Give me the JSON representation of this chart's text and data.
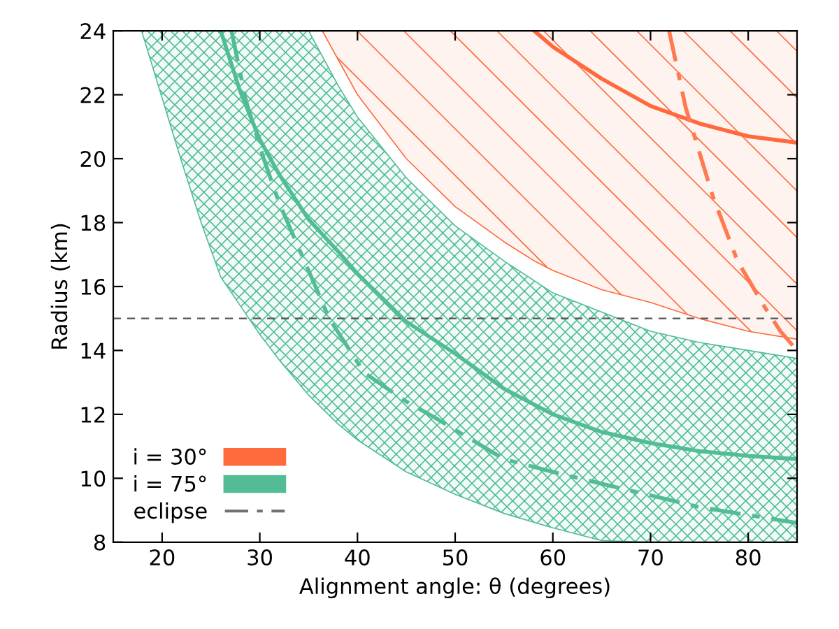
{
  "chart_data": {
    "type": "line",
    "xlabel": "Alignment angle: θ (degrees)",
    "ylabel": "Radius (km)",
    "xlim": [
      15,
      85
    ],
    "xticks": [
      20,
      30,
      40,
      50,
      60,
      70,
      80
    ],
    "ylim": [
      8,
      24
    ],
    "yticks": [
      8,
      10,
      12,
      14,
      16,
      18,
      20,
      22,
      24
    ],
    "grid": false,
    "legend": "bottom left",
    "marker": "none",
    "series": [
      {
        "name": "i = 30°",
        "color": "#ff6a3d",
        "line_style": "solid",
        "x": [
          36.4,
          40,
          45,
          50,
          55,
          58.1,
          60,
          65,
          70,
          75,
          80,
          85
        ],
        "values": [
          null,
          null,
          null,
          null,
          null,
          24,
          23.5,
          22.5,
          21.65,
          21.1,
          20.7,
          20.5
        ],
        "lower": [
          24,
          22.0,
          20.0,
          18.5,
          17.4,
          16.8,
          16.5,
          15.9,
          15.5,
          15.0,
          14.6,
          14.35
        ],
        "upper": [
          24,
          24,
          24,
          24,
          24,
          24,
          24,
          24,
          24,
          24,
          24,
          24
        ]
      },
      {
        "name": "i = 75°",
        "color": "#52bd95",
        "line_style": "solid",
        "x": [
          17.9,
          20,
          22,
          24,
          26,
          28,
          30,
          32,
          35,
          38,
          40,
          45,
          50,
          55,
          60,
          65,
          70,
          75,
          80,
          85
        ],
        "values": [
          null,
          null,
          null,
          null,
          24,
          22.1,
          20.6,
          19.5,
          18.1,
          17.1,
          16.4,
          14.9,
          13.9,
          12.8,
          12.0,
          11.45,
          11.1,
          10.85,
          10.7,
          10.6
        ],
        "lower": [
          24,
          21.9,
          19.9,
          18.0,
          16.3,
          15.4,
          14.5,
          13.7,
          12.6,
          11.7,
          11.2,
          10.2,
          9.5,
          8.9,
          8.45,
          8.05,
          8,
          8,
          8,
          8
        ],
        "upper": [
          24,
          24,
          24,
          24,
          24,
          24,
          24,
          24,
          24,
          22.3,
          21.3,
          19.4,
          17.9,
          16.8,
          15.8,
          15.2,
          14.6,
          14.25,
          14.0,
          13.75
        ]
      },
      {
        "color": "#ff7a50",
        "line_style": "dashdot",
        "x": [
          71.9,
          73.6,
          75,
          76.4,
          78.9,
          81.7,
          83.3,
          85
        ],
        "values": [
          24,
          21.6,
          20.2,
          18.8,
          16.8,
          15.35,
          14.6,
          14.0
        ]
      },
      {
        "color": "#52bd95",
        "line_style": "dashdot",
        "x": [
          27.1,
          28.6,
          30.4,
          32,
          35.7,
          37.1,
          40.7,
          45,
          47.9,
          55,
          60,
          65.4,
          75,
          85
        ],
        "values": [
          24,
          21.8,
          20,
          18.6,
          16,
          15,
          13.3,
          12.4,
          11.9,
          10.6,
          10.2,
          9.8,
          9.1,
          8.6
        ]
      },
      {
        "name": "eclipse",
        "color": "#707070",
        "line_style": "dashdot"
      }
    ],
    "ref_lines": [
      {
        "axis": "y",
        "value": 15,
        "color": "#555555",
        "line_style": "dashed"
      }
    ]
  }
}
